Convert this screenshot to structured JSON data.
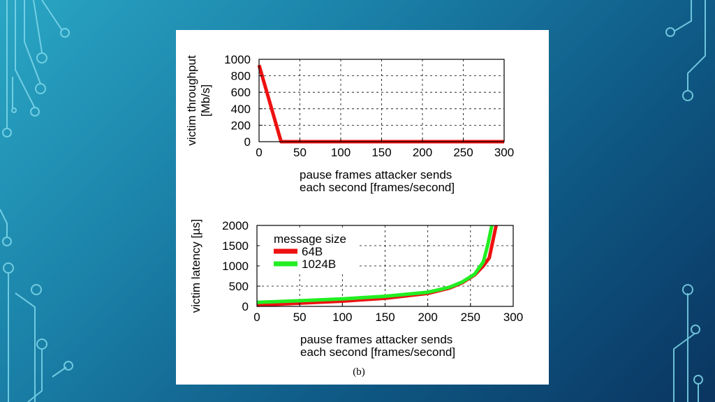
{
  "slide": {
    "colors": {
      "bg_light": "#2aa6c4",
      "bg_dark": "#0a3560",
      "circuit": "#7fd8ec"
    },
    "caption": "(b)"
  },
  "chart_data": [
    {
      "type": "line",
      "title": "",
      "xlabel_lines": [
        "pause frames attacker sends",
        "each second [frames/second]"
      ],
      "ylabel_lines": [
        "victim throughput",
        "[Mb/s]"
      ],
      "xlim": [
        0,
        300
      ],
      "ylim": [
        0,
        1000
      ],
      "xticks": [
        0,
        50,
        100,
        150,
        200,
        250,
        300
      ],
      "yticks": [
        0,
        200,
        400,
        600,
        800,
        1000
      ],
      "grid": true,
      "series": [
        {
          "color": "#ee1111",
          "x": [
            0,
            27,
            300
          ],
          "y": [
            930,
            0,
            0
          ]
        }
      ]
    },
    {
      "type": "line",
      "title": "",
      "xlabel_lines": [
        "pause frames attacker sends",
        "each second [frames/second]"
      ],
      "ylabel_lines": [
        "victim latency [µs]"
      ],
      "xlim": [
        0,
        300
      ],
      "ylim": [
        0,
        2000
      ],
      "xticks": [
        0,
        50,
        100,
        150,
        200,
        250,
        300
      ],
      "yticks": [
        0,
        500,
        1000,
        1500,
        2000
      ],
      "grid": true,
      "legend": {
        "title": "message size",
        "position": "top-left"
      },
      "series": [
        {
          "name": "64B",
          "color": "#ee1111",
          "x": [
            0,
            50,
            100,
            150,
            200,
            225,
            240,
            255,
            265,
            272,
            280
          ],
          "y": [
            30,
            80,
            130,
            200,
            320,
            450,
            580,
            780,
            1000,
            1200,
            2000
          ]
        },
        {
          "name": "1024B",
          "color": "#22ee22",
          "x": [
            0,
            50,
            100,
            150,
            200,
            225,
            240,
            255,
            265,
            270,
            275
          ],
          "y": [
            100,
            140,
            185,
            250,
            350,
            470,
            600,
            800,
            1100,
            1500,
            2000
          ]
        }
      ]
    }
  ]
}
